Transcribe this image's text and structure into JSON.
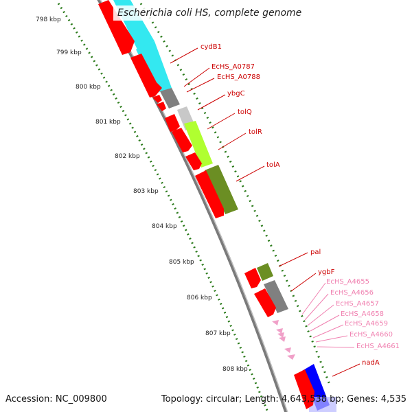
{
  "title": "Escherichia coli HS, complete genome",
  "footer": {
    "accession": "Accession: NC_009800",
    "summary": "Topology: circular; Length: 4,643,538 bp; Genes: 4,535"
  },
  "kbp_labels": [
    "798 kbp",
    "799 kbp",
    "800 kbp",
    "801 kbp",
    "802 kbp",
    "803 kbp",
    "804 kbp",
    "805 kbp",
    "806 kbp",
    "807 kbp",
    "808 kbp"
  ],
  "gene_labels": {
    "cydB1": "cydB1",
    "ecHS_A0787": "EcHS_A0787",
    "ecHS_A0788": "EcHS_A0788",
    "ybgC": "ybgC",
    "tolQ": "tolQ",
    "tolR": "tolR",
    "tolA": "tolA",
    "pal": "pal",
    "ygbF": "ygbF",
    "ecHS_A4655": "EcHS_A4655",
    "ecHS_A4656": "EcHS_A4656",
    "ecHS_A4657": "EcHS_A4657",
    "ecHS_A4658": "EcHS_A4658",
    "ecHS_A4659": "EcHS_A4659",
    "ecHS_A4660": "EcHS_A4660",
    "ecHS_A4661": "EcHS_A4661",
    "nadA": "nadA"
  },
  "colors": {
    "gene": "#ff0000",
    "label_red": "#cc0000",
    "label_pink": "#f080b0",
    "cyan": "#33e8f0",
    "grey": "#808080",
    "light_grey": "#c8c8c8",
    "lime": "#b0ff30",
    "olive": "#6b8e23",
    "blue": "#0000ff",
    "tick": "#2a7a1a"
  }
}
